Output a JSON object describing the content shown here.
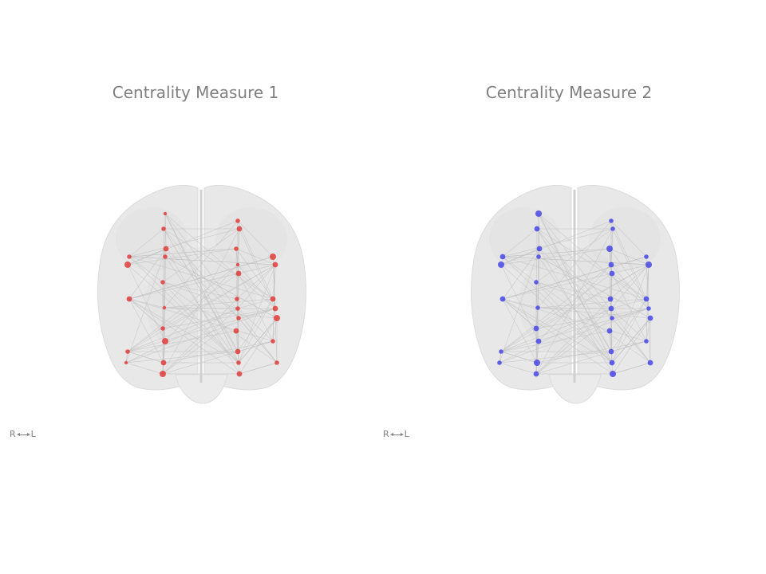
{
  "panels": [
    {
      "title": "Centrality Measure 1",
      "node_color": "#e03c3c",
      "orientation": {
        "right": "R",
        "left": "L"
      },
      "node_sizes": [
        2,
        3,
        4,
        3,
        3,
        5,
        3,
        4,
        2,
        3,
        5,
        3,
        2,
        4,
        5,
        3,
        4,
        3,
        2,
        4,
        5,
        4,
        3,
        4,
        3,
        4,
        3,
        5,
        4,
        3,
        4,
        3,
        3,
        4
      ]
    },
    {
      "title": "Centrality Measure 2",
      "node_color": "#4646e6",
      "orientation": {
        "right": "R",
        "left": "L"
      },
      "node_sizes": [
        5,
        4,
        4,
        3,
        4,
        5,
        3,
        4,
        3,
        4,
        4,
        3,
        3,
        5,
        4,
        3,
        3,
        5,
        4,
        4,
        3,
        5,
        4,
        4,
        4,
        3,
        3,
        4,
        4,
        3,
        4,
        4,
        4,
        5
      ]
    }
  ],
  "brain_color": "#e6e6e6",
  "edge_color": "#c4c4c4"
}
